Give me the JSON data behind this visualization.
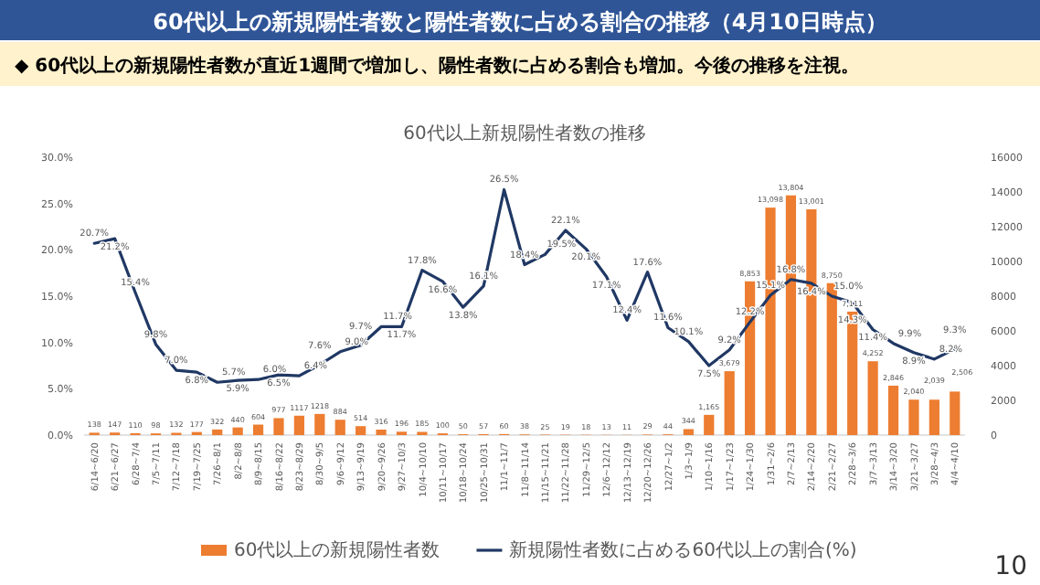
{
  "chart_data": {
    "type": "bar",
    "title": "60代以上の新規陽性者数と陽性者数に占める割合の推移（4月10日時点）",
    "subtitle": "◆  60代以上の新規陽性者数が直近1週間で増加し、陽性者数に占める割合も増加。今後の推移を注視。",
    "annotations": [
      "60代以上新規陽性者数の推移",
      "10"
    ],
    "categories": [
      "6/14~6/20",
      "6/21~6/27",
      "6/28~7/4",
      "7/5~7/11",
      "7/12~7/18",
      "7/19~7/25",
      "7/26~8/1",
      "8/2~8/8",
      "8/9~8/15",
      "8/16~8/22",
      "8/23~8/29",
      "8/30~9/5",
      "9/6~9/12",
      "9/13~9/19",
      "9/20~9/26",
      "9/27~10/3",
      "10/4~10/10",
      "10/11~10/17",
      "10/18~10/24",
      "10/25~10/31",
      "11/1~11/7",
      "11/8~11/14",
      "11/15~11/21",
      "11/22~11/28",
      "11/29~12/5",
      "12/6~12/12",
      "12/13~12/19",
      "12/20~12/26",
      "12/27~1/2",
      "1/3~1/9",
      "1/10~1/16",
      "1/17~1/23",
      "1/24~1/30",
      "1/31~2/6",
      "2/7~2/13",
      "2/14~2/20",
      "2/21~2/27",
      "2/28~3/6",
      "3/7~3/13",
      "3/14~3/20",
      "3/21~3/27",
      "3/28~4/3",
      "4/4~4/10"
    ],
    "ylim": [
      0,
      30
    ],
    "yticks": [
      {
        "value": 0,
        "label": "0.0%"
      },
      {
        "value": 5,
        "label": "5.0%"
      },
      {
        "value": 10,
        "label": "10.0%"
      },
      {
        "value": 15,
        "label": "15.0%"
      },
      {
        "value": 20,
        "label": "20.0%"
      },
      {
        "value": 25,
        "label": "25.0%"
      },
      {
        "value": 30,
        "label": "30.0%"
      }
    ],
    "y2lim": [
      0,
      16000
    ],
    "y2ticks": [
      0,
      2000,
      4000,
      6000,
      8000,
      10000,
      12000,
      14000,
      16000
    ],
    "legend": "bottom",
    "series": [
      {
        "name": "60代以上の新規陽性者数",
        "axis": "y2",
        "color": "#ed7d31",
        "values": [
          138,
          147,
          110,
          98,
          132,
          177,
          322,
          440,
          604,
          977,
          1117,
          1218,
          884,
          514,
          316,
          196,
          185,
          100,
          50,
          57,
          60,
          38,
          25,
          19,
          18,
          13,
          11,
          29,
          44,
          344,
          1165,
          3679,
          8853,
          13098,
          13804,
          13001,
          8750,
          7111,
          4252,
          2846,
          2040,
          2039,
          2506
        ],
        "value_labels": [
          "138",
          "147",
          "110",
          "98",
          "132",
          "177",
          "322",
          "440",
          "604",
          "977",
          "1117",
          "1218",
          "884",
          "514",
          "316",
          "196",
          "185",
          "100",
          "50",
          "57",
          "60",
          "38",
          "25",
          "19",
          "18",
          "13",
          "11",
          "29",
          "44",
          "344",
          "1,165",
          "3,679",
          "8,853",
          "13,098",
          "13,804",
          "13,001",
          "8,750",
          "7,111",
          "4,252",
          "2,846",
          "2,040",
          "2,039",
          "2,506"
        ]
      },
      {
        "name": "新規陽性者数に占める60代以上の割合(%)",
        "type": "line",
        "color": "#203864",
        "values": [
          20.7,
          21.2,
          15.4,
          9.8,
          7.0,
          6.8,
          5.7,
          5.9,
          6.0,
          6.5,
          6.4,
          7.6,
          9.0,
          9.7,
          11.7,
          11.7,
          17.8,
          16.6,
          13.8,
          16.1,
          26.5,
          18.4,
          19.5,
          22.1,
          20.1,
          17.1,
          12.4,
          17.6,
          11.6,
          10.1,
          7.5,
          9.2,
          12.2,
          15.1,
          16.8,
          16.4,
          15.0,
          14.3,
          11.4,
          9.9,
          8.9,
          8.2,
          9.3
        ],
        "value_labels": [
          "20.7%",
          "21.2%",
          "15.4%",
          "9.8%",
          "7.0%",
          "6.8%",
          "5.7%",
          "5.9%",
          "6.0%",
          "6.5%",
          "6.4%",
          "7.6%",
          "9.0%",
          "9.7%",
          "11.7%",
          "11.7%",
          "17.8%",
          "16.6%",
          "13.8%",
          "16.1%",
          "26.5%",
          "18.4%",
          "19.5%",
          "22.1%",
          "20.1%",
          "17.1%",
          "12.4%",
          "17.6%",
          "11.6%",
          "10.1%",
          "7.5%",
          "9.2%",
          "12.2%",
          "15.1%",
          "16.8%",
          "16.4%",
          "15.0%",
          "14.3%",
          "11.4%",
          "9.9%",
          "8.9%",
          "8.2%",
          "9.3%"
        ]
      }
    ]
  }
}
